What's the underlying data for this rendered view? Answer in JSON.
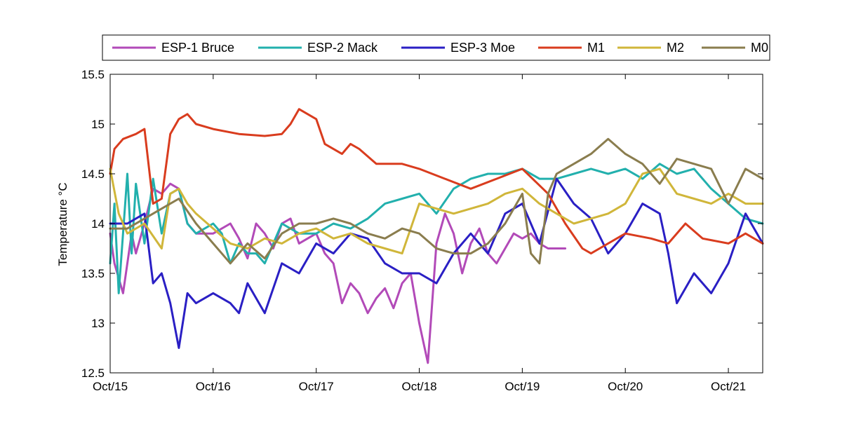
{
  "chart_data": {
    "type": "line",
    "title": "",
    "xlabel": "",
    "ylabel": "Temperature °C",
    "xlim": [
      "2015-10-15",
      "2015-10-21 08:00"
    ],
    "ylim": [
      12.5,
      15.5
    ],
    "x_ticks": [
      "Oct/15",
      "Oct/16",
      "Oct/17",
      "Oct/18",
      "Oct/19",
      "Oct/20",
      "Oct/21"
    ],
    "y_ticks": [
      "12.5",
      "13",
      "13.5",
      "14",
      "14.5",
      "15",
      "15.5"
    ],
    "grid": false,
    "legend_position": "top, outside plot, single row",
    "series": [
      {
        "name": "ESP-1 Bruce",
        "color": "#b24ab8",
        "x": [
          "2015-10-15 00:00",
          "2015-10-15 01:00",
          "2015-10-15 03:00",
          "2015-10-15 05:00",
          "2015-10-15 06:00",
          "2015-10-15 08:00",
          "2015-10-15 10:00",
          "2015-10-15 12:00",
          "2015-10-15 14:00",
          "2015-10-15 16:00",
          "2015-10-15 18:00",
          "2015-10-15 20:00",
          "2015-10-16 00:00",
          "2015-10-16 04:00",
          "2015-10-16 06:00",
          "2015-10-16 08:00",
          "2015-10-16 10:00",
          "2015-10-16 12:00",
          "2015-10-16 14:00",
          "2015-10-16 16:00",
          "2015-10-16 18:00",
          "2015-10-16 20:00",
          "2015-10-16 22:00",
          "2015-10-17 00:00",
          "2015-10-17 02:00",
          "2015-10-17 04:00",
          "2015-10-17 06:00",
          "2015-10-17 08:00",
          "2015-10-17 10:00",
          "2015-10-17 12:00",
          "2015-10-17 14:00",
          "2015-10-17 16:00",
          "2015-10-17 18:00",
          "2015-10-17 20:00",
          "2015-10-17 22:00",
          "2015-10-18 00:00",
          "2015-10-18 02:00",
          "2015-10-18 04:00",
          "2015-10-18 06:00",
          "2015-10-18 08:00",
          "2015-10-18 10:00",
          "2015-10-18 12:00",
          "2015-10-18 14:00",
          "2015-10-18 16:00",
          "2015-10-18 18:00",
          "2015-10-18 20:00",
          "2015-10-18 22:00",
          "2015-10-19 00:00",
          "2015-10-19 02:00",
          "2015-10-19 04:00",
          "2015-10-19 06:00",
          "2015-10-19 08:00",
          "2015-10-19 10:00"
        ],
        "y": [
          13.9,
          13.6,
          13.3,
          13.9,
          13.7,
          14.0,
          14.35,
          14.3,
          14.4,
          14.35,
          14.0,
          13.9,
          13.9,
          14.0,
          13.85,
          13.65,
          14.0,
          13.9,
          13.75,
          14.0,
          14.05,
          13.8,
          13.85,
          13.9,
          13.7,
          13.6,
          13.2,
          13.4,
          13.3,
          13.1,
          13.25,
          13.35,
          13.15,
          13.4,
          13.5,
          13.0,
          12.6,
          13.8,
          14.1,
          13.9,
          13.5,
          13.8,
          13.95,
          13.7,
          13.6,
          13.75,
          13.9,
          13.85,
          13.9,
          13.8,
          13.75,
          13.75,
          13.75
        ]
      },
      {
        "name": "ESP-2 Mack",
        "color": "#22b0ad",
        "x": [
          "2015-10-15 00:00",
          "2015-10-15 01:00",
          "2015-10-15 02:00",
          "2015-10-15 04:00",
          "2015-10-15 05:00",
          "2015-10-15 06:00",
          "2015-10-15 08:00",
          "2015-10-15 10:00",
          "2015-10-15 12:00",
          "2015-10-15 14:00",
          "2015-10-15 16:00",
          "2015-10-15 18:00",
          "2015-10-15 20:00",
          "2015-10-16 00:00",
          "2015-10-16 02:00",
          "2015-10-16 04:00",
          "2015-10-16 06:00",
          "2015-10-16 08:00",
          "2015-10-16 10:00",
          "2015-10-16 12:00",
          "2015-10-16 16:00",
          "2015-10-16 20:00",
          "2015-10-17 00:00",
          "2015-10-17 04:00",
          "2015-10-17 08:00",
          "2015-10-17 12:00",
          "2015-10-17 16:00",
          "2015-10-17 20:00",
          "2015-10-18 00:00",
          "2015-10-18 04:00",
          "2015-10-18 08:00",
          "2015-10-18 12:00",
          "2015-10-18 16:00",
          "2015-10-18 20:00",
          "2015-10-19 00:00",
          "2015-10-19 04:00",
          "2015-10-19 08:00",
          "2015-10-19 12:00",
          "2015-10-19 16:00",
          "2015-10-19 20:00",
          "2015-10-20 00:00",
          "2015-10-20 04:00",
          "2015-10-20 08:00",
          "2015-10-20 12:00",
          "2015-10-20 16:00",
          "2015-10-20 20:00",
          "2015-10-21 00:00",
          "2015-10-21 04:00",
          "2015-10-21 08:00"
        ],
        "y": [
          13.6,
          14.2,
          13.3,
          14.5,
          13.7,
          14.4,
          13.8,
          14.45,
          13.9,
          14.3,
          14.35,
          14.0,
          13.9,
          14.0,
          13.9,
          13.6,
          13.8,
          13.7,
          13.7,
          13.6,
          14.0,
          13.9,
          13.9,
          14.0,
          13.95,
          14.05,
          14.2,
          14.25,
          14.3,
          14.1,
          14.35,
          14.45,
          14.5,
          14.5,
          14.55,
          14.45,
          14.45,
          14.5,
          14.55,
          14.5,
          14.55,
          14.45,
          14.6,
          14.5,
          14.55,
          14.35,
          14.2,
          14.05,
          14.0
        ]
      },
      {
        "name": "ESP-3 Moe",
        "color": "#2a1fc4",
        "x": [
          "2015-10-15 00:00",
          "2015-10-15 04:00",
          "2015-10-15 08:00",
          "2015-10-15 10:00",
          "2015-10-15 12:00",
          "2015-10-15 14:00",
          "2015-10-15 16:00",
          "2015-10-15 18:00",
          "2015-10-15 20:00",
          "2015-10-16 00:00",
          "2015-10-16 04:00",
          "2015-10-16 06:00",
          "2015-10-16 08:00",
          "2015-10-16 12:00",
          "2015-10-16 16:00",
          "2015-10-16 20:00",
          "2015-10-17 00:00",
          "2015-10-17 04:00",
          "2015-10-17 08:00",
          "2015-10-17 12:00",
          "2015-10-17 16:00",
          "2015-10-17 20:00",
          "2015-10-18 00:00",
          "2015-10-18 04:00",
          "2015-10-18 08:00",
          "2015-10-18 12:00",
          "2015-10-18 16:00",
          "2015-10-18 20:00",
          "2015-10-19 00:00",
          "2015-10-19 04:00",
          "2015-10-19 08:00",
          "2015-10-19 12:00",
          "2015-10-19 16:00",
          "2015-10-19 20:00",
          "2015-10-20 00:00",
          "2015-10-20 04:00",
          "2015-10-20 08:00",
          "2015-10-20 10:00",
          "2015-10-20 12:00",
          "2015-10-20 16:00",
          "2015-10-20 20:00",
          "2015-10-21 00:00",
          "2015-10-21 04:00",
          "2015-10-21 08:00"
        ],
        "y": [
          14.0,
          14.0,
          14.1,
          13.4,
          13.5,
          13.2,
          12.75,
          13.3,
          13.2,
          13.3,
          13.2,
          13.1,
          13.4,
          13.1,
          13.6,
          13.5,
          13.8,
          13.7,
          13.9,
          13.85,
          13.6,
          13.5,
          13.5,
          13.4,
          13.7,
          13.9,
          13.7,
          14.1,
          14.2,
          13.8,
          14.45,
          14.2,
          14.05,
          13.7,
          13.9,
          14.2,
          14.1,
          13.7,
          13.2,
          13.5,
          13.3,
          13.6,
          14.1,
          13.8
        ]
      },
      {
        "name": "M1",
        "color": "#d93c1e",
        "x": [
          "2015-10-15 00:00",
          "2015-10-15 01:00",
          "2015-10-15 03:00",
          "2015-10-15 06:00",
          "2015-10-15 08:00",
          "2015-10-15 10:00",
          "2015-10-15 12:00",
          "2015-10-15 14:00",
          "2015-10-15 16:00",
          "2015-10-15 18:00",
          "2015-10-15 20:00",
          "2015-10-16 00:00",
          "2015-10-16 06:00",
          "2015-10-16 12:00",
          "2015-10-16 16:00",
          "2015-10-16 18:00",
          "2015-10-16 20:00",
          "2015-10-17 00:00",
          "2015-10-17 02:00",
          "2015-10-17 06:00",
          "2015-10-17 08:00",
          "2015-10-17 10:00",
          "2015-10-17 14:00",
          "2015-10-17 20:00",
          "2015-10-18 00:00",
          "2015-10-18 06:00",
          "2015-10-18 12:00",
          "2015-10-18 18:00",
          "2015-10-19 00:00",
          "2015-10-19 06:00",
          "2015-10-19 10:00",
          "2015-10-19 14:00",
          "2015-10-19 16:00",
          "2015-10-19 18:00",
          "2015-10-20 00:00",
          "2015-10-20 06:00",
          "2015-10-20 10:00",
          "2015-10-20 14:00",
          "2015-10-20 18:00",
          "2015-10-21 00:00",
          "2015-10-21 04:00",
          "2015-10-21 08:00"
        ],
        "y": [
          14.5,
          14.75,
          14.85,
          14.9,
          14.95,
          14.2,
          14.25,
          14.9,
          15.05,
          15.1,
          15.0,
          14.95,
          14.9,
          14.88,
          14.9,
          15.0,
          15.15,
          15.05,
          14.8,
          14.7,
          14.8,
          14.75,
          14.6,
          14.6,
          14.55,
          14.45,
          14.35,
          14.45,
          14.55,
          14.3,
          14.0,
          13.75,
          13.7,
          13.75,
          13.9,
          13.85,
          13.8,
          14.0,
          13.85,
          13.8,
          13.9,
          13.8
        ]
      },
      {
        "name": "M2",
        "color": "#d0b63a",
        "x": [
          "2015-10-15 00:00",
          "2015-10-15 02:00",
          "2015-10-15 04:00",
          "2015-10-15 08:00",
          "2015-10-15 12:00",
          "2015-10-15 14:00",
          "2015-10-15 16:00",
          "2015-10-15 18:00",
          "2015-10-15 20:00",
          "2015-10-16 00:00",
          "2015-10-16 04:00",
          "2015-10-16 08:00",
          "2015-10-16 12:00",
          "2015-10-16 16:00",
          "2015-10-16 20:00",
          "2015-10-17 00:00",
          "2015-10-17 04:00",
          "2015-10-17 08:00",
          "2015-10-17 12:00",
          "2015-10-17 16:00",
          "2015-10-17 20:00",
          "2015-10-18 00:00",
          "2015-10-18 04:00",
          "2015-10-18 08:00",
          "2015-10-18 12:00",
          "2015-10-18 16:00",
          "2015-10-18 20:00",
          "2015-10-19 00:00",
          "2015-10-19 04:00",
          "2015-10-19 08:00",
          "2015-10-19 12:00",
          "2015-10-19 16:00",
          "2015-10-19 20:00",
          "2015-10-20 00:00",
          "2015-10-20 04:00",
          "2015-10-20 08:00",
          "2015-10-20 12:00",
          "2015-10-20 16:00",
          "2015-10-20 20:00",
          "2015-10-21 00:00",
          "2015-10-21 04:00",
          "2015-10-21 08:00"
        ],
        "y": [
          14.55,
          14.1,
          13.9,
          14.0,
          13.75,
          14.3,
          14.35,
          14.2,
          14.1,
          13.95,
          13.8,
          13.75,
          13.85,
          13.8,
          13.9,
          13.95,
          13.85,
          13.9,
          13.8,
          13.75,
          13.7,
          14.2,
          14.15,
          14.1,
          14.15,
          14.2,
          14.3,
          14.35,
          14.2,
          14.1,
          14.0,
          14.05,
          14.1,
          14.2,
          14.5,
          14.55,
          14.3,
          14.25,
          14.2,
          14.3,
          14.2,
          14.2
        ]
      },
      {
        "name": "M0",
        "color": "#8a7d4e",
        "x": [
          "2015-10-15 00:00",
          "2015-10-15 04:00",
          "2015-10-15 08:00",
          "2015-10-15 12:00",
          "2015-10-15 14:00",
          "2015-10-15 16:00",
          "2015-10-15 20:00",
          "2015-10-16 00:00",
          "2015-10-16 04:00",
          "2015-10-16 08:00",
          "2015-10-16 12:00",
          "2015-10-16 16:00",
          "2015-10-16 20:00",
          "2015-10-17 00:00",
          "2015-10-17 04:00",
          "2015-10-17 08:00",
          "2015-10-17 12:00",
          "2015-10-17 16:00",
          "2015-10-17 20:00",
          "2015-10-18 00:00",
          "2015-10-18 04:00",
          "2015-10-18 08:00",
          "2015-10-18 12:00",
          "2015-10-18 16:00",
          "2015-10-18 20:00",
          "2015-10-19 00:00",
          "2015-10-19 02:00",
          "2015-10-19 04:00",
          "2015-10-19 06:00",
          "2015-10-19 08:00",
          "2015-10-19 12:00",
          "2015-10-19 16:00",
          "2015-10-19 20:00",
          "2015-10-20 00:00",
          "2015-10-20 04:00",
          "2015-10-20 08:00",
          "2015-10-20 12:00",
          "2015-10-20 16:00",
          "2015-10-20 20:00",
          "2015-10-21 00:00",
          "2015-10-21 04:00",
          "2015-10-21 08:00"
        ],
        "y": [
          13.95,
          13.95,
          14.05,
          14.15,
          14.2,
          14.25,
          14.0,
          13.8,
          13.6,
          13.8,
          13.65,
          13.9,
          14.0,
          14.0,
          14.05,
          14.0,
          13.9,
          13.85,
          13.95,
          13.9,
          13.75,
          13.7,
          13.7,
          13.8,
          14.0,
          14.3,
          13.7,
          13.6,
          14.3,
          14.5,
          14.6,
          14.7,
          14.85,
          14.7,
          14.6,
          14.4,
          14.65,
          14.6,
          14.55,
          14.2,
          14.55,
          14.45
        ]
      }
    ]
  }
}
